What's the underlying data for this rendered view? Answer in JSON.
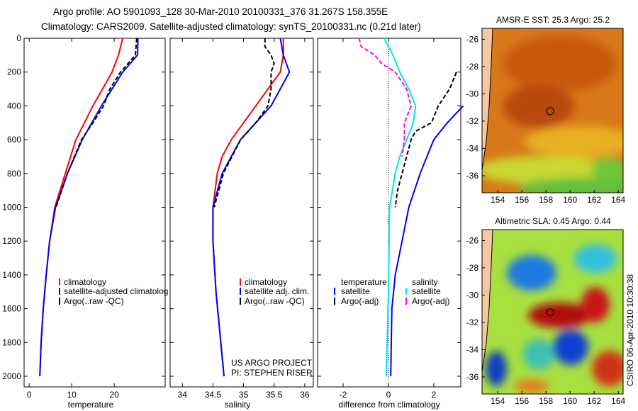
{
  "title_line1": "Argo profile: AO 5901093_128 30-Mar-2010 20100331_376 31.267S 158.355E",
  "title_line2": "Climatology: CARS2009. Satellite-adjusted climatology: synTS_20100331.nc (0.21d later)",
  "side_label": "CSIRO 06-Apr-2010 10:30:38",
  "credit1": "US ARGO PROJECT",
  "credit2": "PI: STEPHEN RISER",
  "colors": {
    "clim": "#ff0000",
    "sat": "#0000ff",
    "argo": "#000000",
    "sal_sat": "#00e5ee",
    "sal_argo": "#ff00ff"
  },
  "chart_data": [
    {
      "type": "line",
      "xlabel": "temperature",
      "xlim": [
        -1.2,
        32
      ],
      "ylim": [
        2063,
        0
      ],
      "yticks": [
        0,
        200,
        400,
        600,
        800,
        1000,
        1200,
        1400,
        1600,
        1800,
        2000
      ],
      "xticks": [
        0,
        10,
        20
      ],
      "legend": [
        "climatology",
        "satellite-adjusted climatolog",
        "Argo(..raw -QC)"
      ],
      "series": [
        {
          "name": "climatology",
          "color": "#ff0000",
          "depth": [
            0,
            100,
            200,
            400,
            600,
            800,
            1000,
            1200,
            1400,
            1600,
            1800,
            2000
          ],
          "values": [
            22,
            21,
            19.5,
            15,
            11,
            8.5,
            6,
            4.8,
            4,
            3.3,
            2.8,
            2.5
          ]
        },
        {
          "name": "satellite",
          "color": "#0000ff",
          "depth": [
            0,
            100,
            200,
            400,
            600,
            800,
            1000,
            1200,
            1400,
            1600,
            1800,
            2000
          ],
          "values": [
            25.6,
            25.5,
            22,
            17,
            12.5,
            9,
            6.2,
            4.8,
            4,
            3.3,
            2.8,
            2.5
          ]
        },
        {
          "name": "argo",
          "color": "#000000",
          "dash": true,
          "depth": [
            0,
            100,
            200,
            300,
            400,
            500,
            600,
            800,
            1000
          ],
          "values": [
            25.3,
            25,
            21.5,
            19,
            17.5,
            15,
            12.3,
            9,
            6.3
          ]
        }
      ]
    },
    {
      "type": "line",
      "xlabel": "salinity",
      "xlim": [
        33.8,
        36.14
      ],
      "ylim": [
        2063,
        0
      ],
      "xticks": [
        34,
        34.5,
        35,
        35.5,
        36
      ],
      "legend": [
        "climatology",
        "satellite adj. clim.",
        "Argo(..raw -QC)"
      ],
      "series": [
        {
          "name": "climatology",
          "color": "#ff0000",
          "depth": [
            0,
            100,
            200,
            300,
            400,
            500,
            600,
            700,
            800,
            1000,
            1200,
            1500,
            2000
          ],
          "values": [
            35.65,
            35.65,
            35.6,
            35.4,
            35.2,
            35,
            34.8,
            34.65,
            34.57,
            34.5,
            34.5,
            34.55,
            34.68
          ]
        },
        {
          "name": "satellite",
          "color": "#0000ff",
          "depth": [
            0,
            100,
            200,
            300,
            400,
            500,
            600,
            800,
            1000,
            1200,
            1500,
            2000
          ],
          "values": [
            35.6,
            35.65,
            35.75,
            35.6,
            35.45,
            35.2,
            34.95,
            34.65,
            34.5,
            34.5,
            34.55,
            34.68
          ]
        },
        {
          "name": "argo",
          "color": "#000000",
          "dash": true,
          "depth": [
            0,
            50,
            100,
            150,
            200,
            300,
            400,
            450,
            500,
            600,
            800,
            1000
          ],
          "values": [
            35.35,
            35.35,
            35.45,
            35.5,
            35.45,
            35.45,
            35.4,
            35.3,
            35.2,
            34.95,
            34.67,
            34.52
          ]
        }
      ]
    },
    {
      "type": "line",
      "xlabel": "difference from climatology",
      "xlim": [
        -3.125,
        3.19
      ],
      "ylim": [
        2063,
        0
      ],
      "xticks": [
        -2,
        0,
        2
      ],
      "legend_headers": [
        "temperature",
        "salinity"
      ],
      "legend": [
        "satellite",
        "Argo(-adj)",
        "satellite",
        "Argo(-adj)"
      ],
      "series": [
        {
          "name": "temp satellite",
          "color": "#0000ff",
          "depth": [
            400,
            500,
            600,
            800,
            1000,
            1200,
            1400,
            1600,
            2000
          ],
          "values": [
            3.3,
            2.6,
            2.0,
            1.4,
            0.9,
            0.6,
            0.3,
            0.15,
            0.1
          ]
        },
        {
          "name": "temp argo",
          "color": "#000000",
          "dash": true,
          "depth": [
            200,
            300,
            400,
            500,
            550,
            600,
            700,
            800,
            900,
            1000
          ],
          "values": [
            3.0,
            2.7,
            2.2,
            1.9,
            1.2,
            1.0,
            0.8,
            0.6,
            0.4,
            0.3
          ]
        },
        {
          "name": "sal satellite",
          "color": "#00e5ee",
          "depth": [
            0,
            100,
            200,
            300,
            400,
            500,
            600,
            700,
            800,
            1000,
            1500,
            2000
          ],
          "values": [
            -0.2,
            0.2,
            0.5,
            0.9,
            1.2,
            1.1,
            0.8,
            0.5,
            0.3,
            0.05,
            0,
            -0.1
          ]
        },
        {
          "name": "sal argo",
          "color": "#ff00ff",
          "dash": true,
          "depth": [
            0,
            50,
            100,
            150,
            200,
            300,
            400,
            500,
            600,
            700
          ],
          "values": [
            -1.3,
            -1.2,
            -0.6,
            -0.3,
            0.3,
            0.8,
            1.0,
            0.7,
            0.7,
            0.6
          ]
        }
      ]
    },
    {
      "type": "heatmap",
      "title": "AMSR-E SST: 25.3 Argo: 25.2",
      "xlim": [
        152.7,
        164.4
      ],
      "ylim": [
        -37.25,
        -25.2
      ],
      "xticks": [
        154,
        156,
        158,
        160,
        162,
        164
      ],
      "yticks": [
        -26,
        -28,
        -30,
        -32,
        -34,
        -36
      ],
      "marker": [
        158.355,
        -31.267
      ]
    },
    {
      "type": "heatmap",
      "title": "Altimetric SLA: 0.45 Argo: 0.44",
      "xlim": [
        152.7,
        164.4
      ],
      "ylim": [
        -37.25,
        -25.2
      ],
      "xticks": [
        154,
        156,
        158,
        160,
        162,
        164
      ],
      "yticks": [
        -26,
        -28,
        -30,
        -32,
        -34,
        -36
      ],
      "marker": [
        158.355,
        -31.267
      ]
    }
  ]
}
